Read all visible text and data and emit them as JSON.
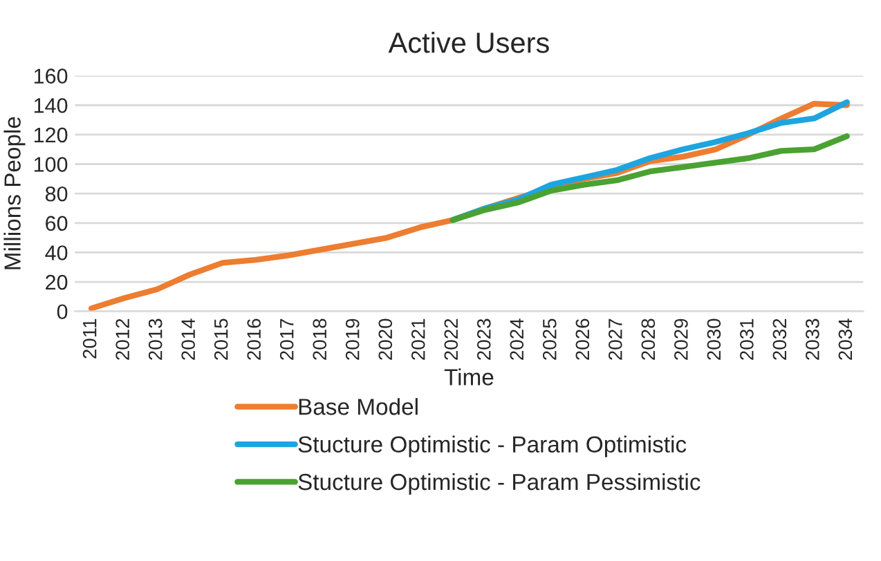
{
  "chart_data": {
    "type": "line",
    "title": "Active Users",
    "xlabel": "Time",
    "ylabel": "Millions People",
    "categories": [
      "2011",
      "2012",
      "2013",
      "2014",
      "2015",
      "2016",
      "2017",
      "2018",
      "2019",
      "2020",
      "2021",
      "2022",
      "2023",
      "2024",
      "2025",
      "2026",
      "2027",
      "2028",
      "2029",
      "2030",
      "2031",
      "2032",
      "2033",
      "2034"
    ],
    "series": [
      {
        "name": "Base Model",
        "color": "#ed7d31",
        "values": [
          2,
          9,
          15,
          25,
          33,
          35,
          38,
          42,
          46,
          50,
          57,
          62,
          70,
          77,
          84,
          90,
          94,
          102,
          105,
          110,
          120,
          131,
          141,
          140
        ]
      },
      {
        "name": "Stucture Optimistic - Param Optimistic",
        "color": "#1ea5e0",
        "values": [
          null,
          null,
          null,
          null,
          null,
          null,
          null,
          null,
          null,
          null,
          null,
          62,
          70,
          76,
          86,
          91,
          96,
          104,
          110,
          115,
          121,
          128,
          131,
          142
        ]
      },
      {
        "name": "Stucture Optimistic - Param Pessimistic",
        "color": "#4aa232",
        "values": [
          null,
          null,
          null,
          null,
          null,
          null,
          null,
          null,
          null,
          null,
          null,
          62,
          69,
          74,
          82,
          86,
          89,
          95,
          98,
          101,
          104,
          109,
          110,
          119
        ]
      }
    ],
    "ylim": [
      0,
      160
    ],
    "yticks": [
      0,
      20,
      40,
      60,
      80,
      100,
      120,
      140,
      160
    ],
    "grid": "y",
    "legend": "bottom",
    "marker": "none",
    "line_style": "solid"
  }
}
